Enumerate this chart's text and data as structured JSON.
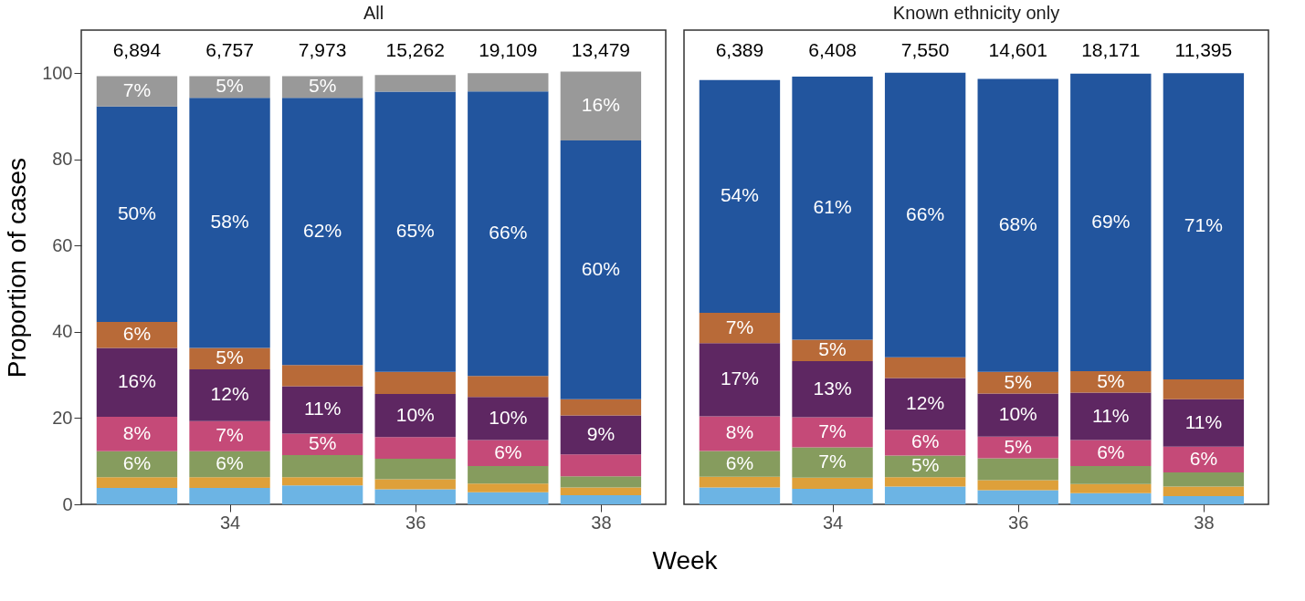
{
  "chart_data": [
    {
      "type": "bar",
      "title": "All",
      "xlabel": "Week",
      "ylabel": "Proportion of cases",
      "x": [
        33,
        34,
        35,
        36,
        37,
        38
      ],
      "xlim": [
        32.4,
        38.7
      ],
      "xticks": [
        34,
        36,
        38
      ],
      "ylim": [
        0,
        110
      ],
      "yticks": [
        0,
        20,
        40,
        60,
        80,
        100
      ],
      "stacked": true,
      "grid": false,
      "legend": false,
      "annotations": [
        "6,894",
        "6,757",
        "7,973",
        "15,262",
        "19,109",
        "13,479"
      ],
      "series": [
        {
          "color": "#6cb4e4",
          "values": [
            3.8,
            3.8,
            4.4,
            3.5,
            2.8,
            2.1
          ],
          "value_labels": [
            null,
            null,
            null,
            null,
            null,
            null
          ]
        },
        {
          "color": "#dea03a",
          "values": [
            2.5,
            2.5,
            1.9,
            2.3,
            2.0,
            1.8
          ],
          "value_labels": [
            null,
            null,
            null,
            null,
            null,
            null
          ]
        },
        {
          "color": "#869c5e",
          "values": [
            6,
            6,
            5.1,
            4.8,
            4.1,
            2.6
          ],
          "value_labels": [
            "6%",
            "6%",
            null,
            null,
            null,
            null
          ]
        },
        {
          "color": "#c54a78",
          "values": [
            8,
            7,
            5,
            5.0,
            6,
            5.1
          ],
          "value_labels": [
            "8%",
            "7%",
            "5%",
            null,
            "6%",
            null
          ]
        },
        {
          "color": "#5e2762",
          "values": [
            16,
            12,
            11,
            10,
            10,
            9
          ],
          "value_labels": [
            "16%",
            "12%",
            "11%",
            "10%",
            "10%",
            "9%"
          ]
        },
        {
          "color": "#b86a38",
          "values": [
            6,
            5,
            4.9,
            5.1,
            4.9,
            3.8
          ],
          "value_labels": [
            "6%",
            "5%",
            null,
            null,
            null,
            null
          ]
        },
        {
          "color": "#22559e",
          "values": [
            50,
            58,
            62,
            65,
            66,
            60
          ],
          "value_labels": [
            "50%",
            "58%",
            "62%",
            "65%",
            "66%",
            "60%"
          ]
        },
        {
          "color": "#999999",
          "values": [
            7,
            5,
            5,
            3.9,
            4.2,
            16
          ],
          "value_labels": [
            "7%",
            "5%",
            "5%",
            null,
            null,
            "16%"
          ]
        }
      ]
    },
    {
      "type": "bar",
      "title": "Known ethnicity only",
      "x": [
        33,
        34,
        35,
        36,
        37,
        38
      ],
      "xlim": [
        32.4,
        38.7
      ],
      "xticks": [
        34,
        36,
        38
      ],
      "ylim": [
        0,
        110
      ],
      "stacked": true,
      "grid": false,
      "legend": false,
      "tick_labels": "x",
      "annotations": [
        "6,389",
        "6,408",
        "7,550",
        "14,601",
        "18,171",
        "11,395"
      ],
      "series": [
        {
          "color": "#6cb4e4",
          "values": [
            3.9,
            3.6,
            4.1,
            3.3,
            2.6,
            1.9
          ],
          "value_labels": [
            null,
            null,
            null,
            null,
            null,
            null
          ]
        },
        {
          "color": "#dea03a",
          "values": [
            2.5,
            2.6,
            2.2,
            2.3,
            2.1,
            2.2
          ],
          "value_labels": [
            null,
            null,
            null,
            null,
            null,
            null
          ]
        },
        {
          "color": "#869c5e",
          "values": [
            6,
            7,
            5,
            5.1,
            4.2,
            3.3
          ],
          "value_labels": [
            "6%",
            "7%",
            "5%",
            null,
            null,
            null
          ]
        },
        {
          "color": "#c54a78",
          "values": [
            8,
            7,
            6,
            5,
            6,
            6
          ],
          "value_labels": [
            "8%",
            "7%",
            "6%",
            "5%",
            "6%",
            "6%"
          ]
        },
        {
          "color": "#5e2762",
          "values": [
            17,
            13,
            12,
            10,
            11,
            11
          ],
          "value_labels": [
            "17%",
            "13%",
            "12%",
            "10%",
            "11%",
            "11%"
          ]
        },
        {
          "color": "#b86a38",
          "values": [
            7,
            5,
            4.8,
            5,
            5,
            4.6
          ],
          "value_labels": [
            "7%",
            "5%",
            null,
            "5%",
            "5%",
            null
          ]
        },
        {
          "color": "#22559e",
          "values": [
            54,
            61,
            66,
            68,
            69,
            71
          ],
          "value_labels": [
            "54%",
            "61%",
            "66%",
            "68%",
            "69%",
            "71%"
          ]
        }
      ]
    }
  ]
}
